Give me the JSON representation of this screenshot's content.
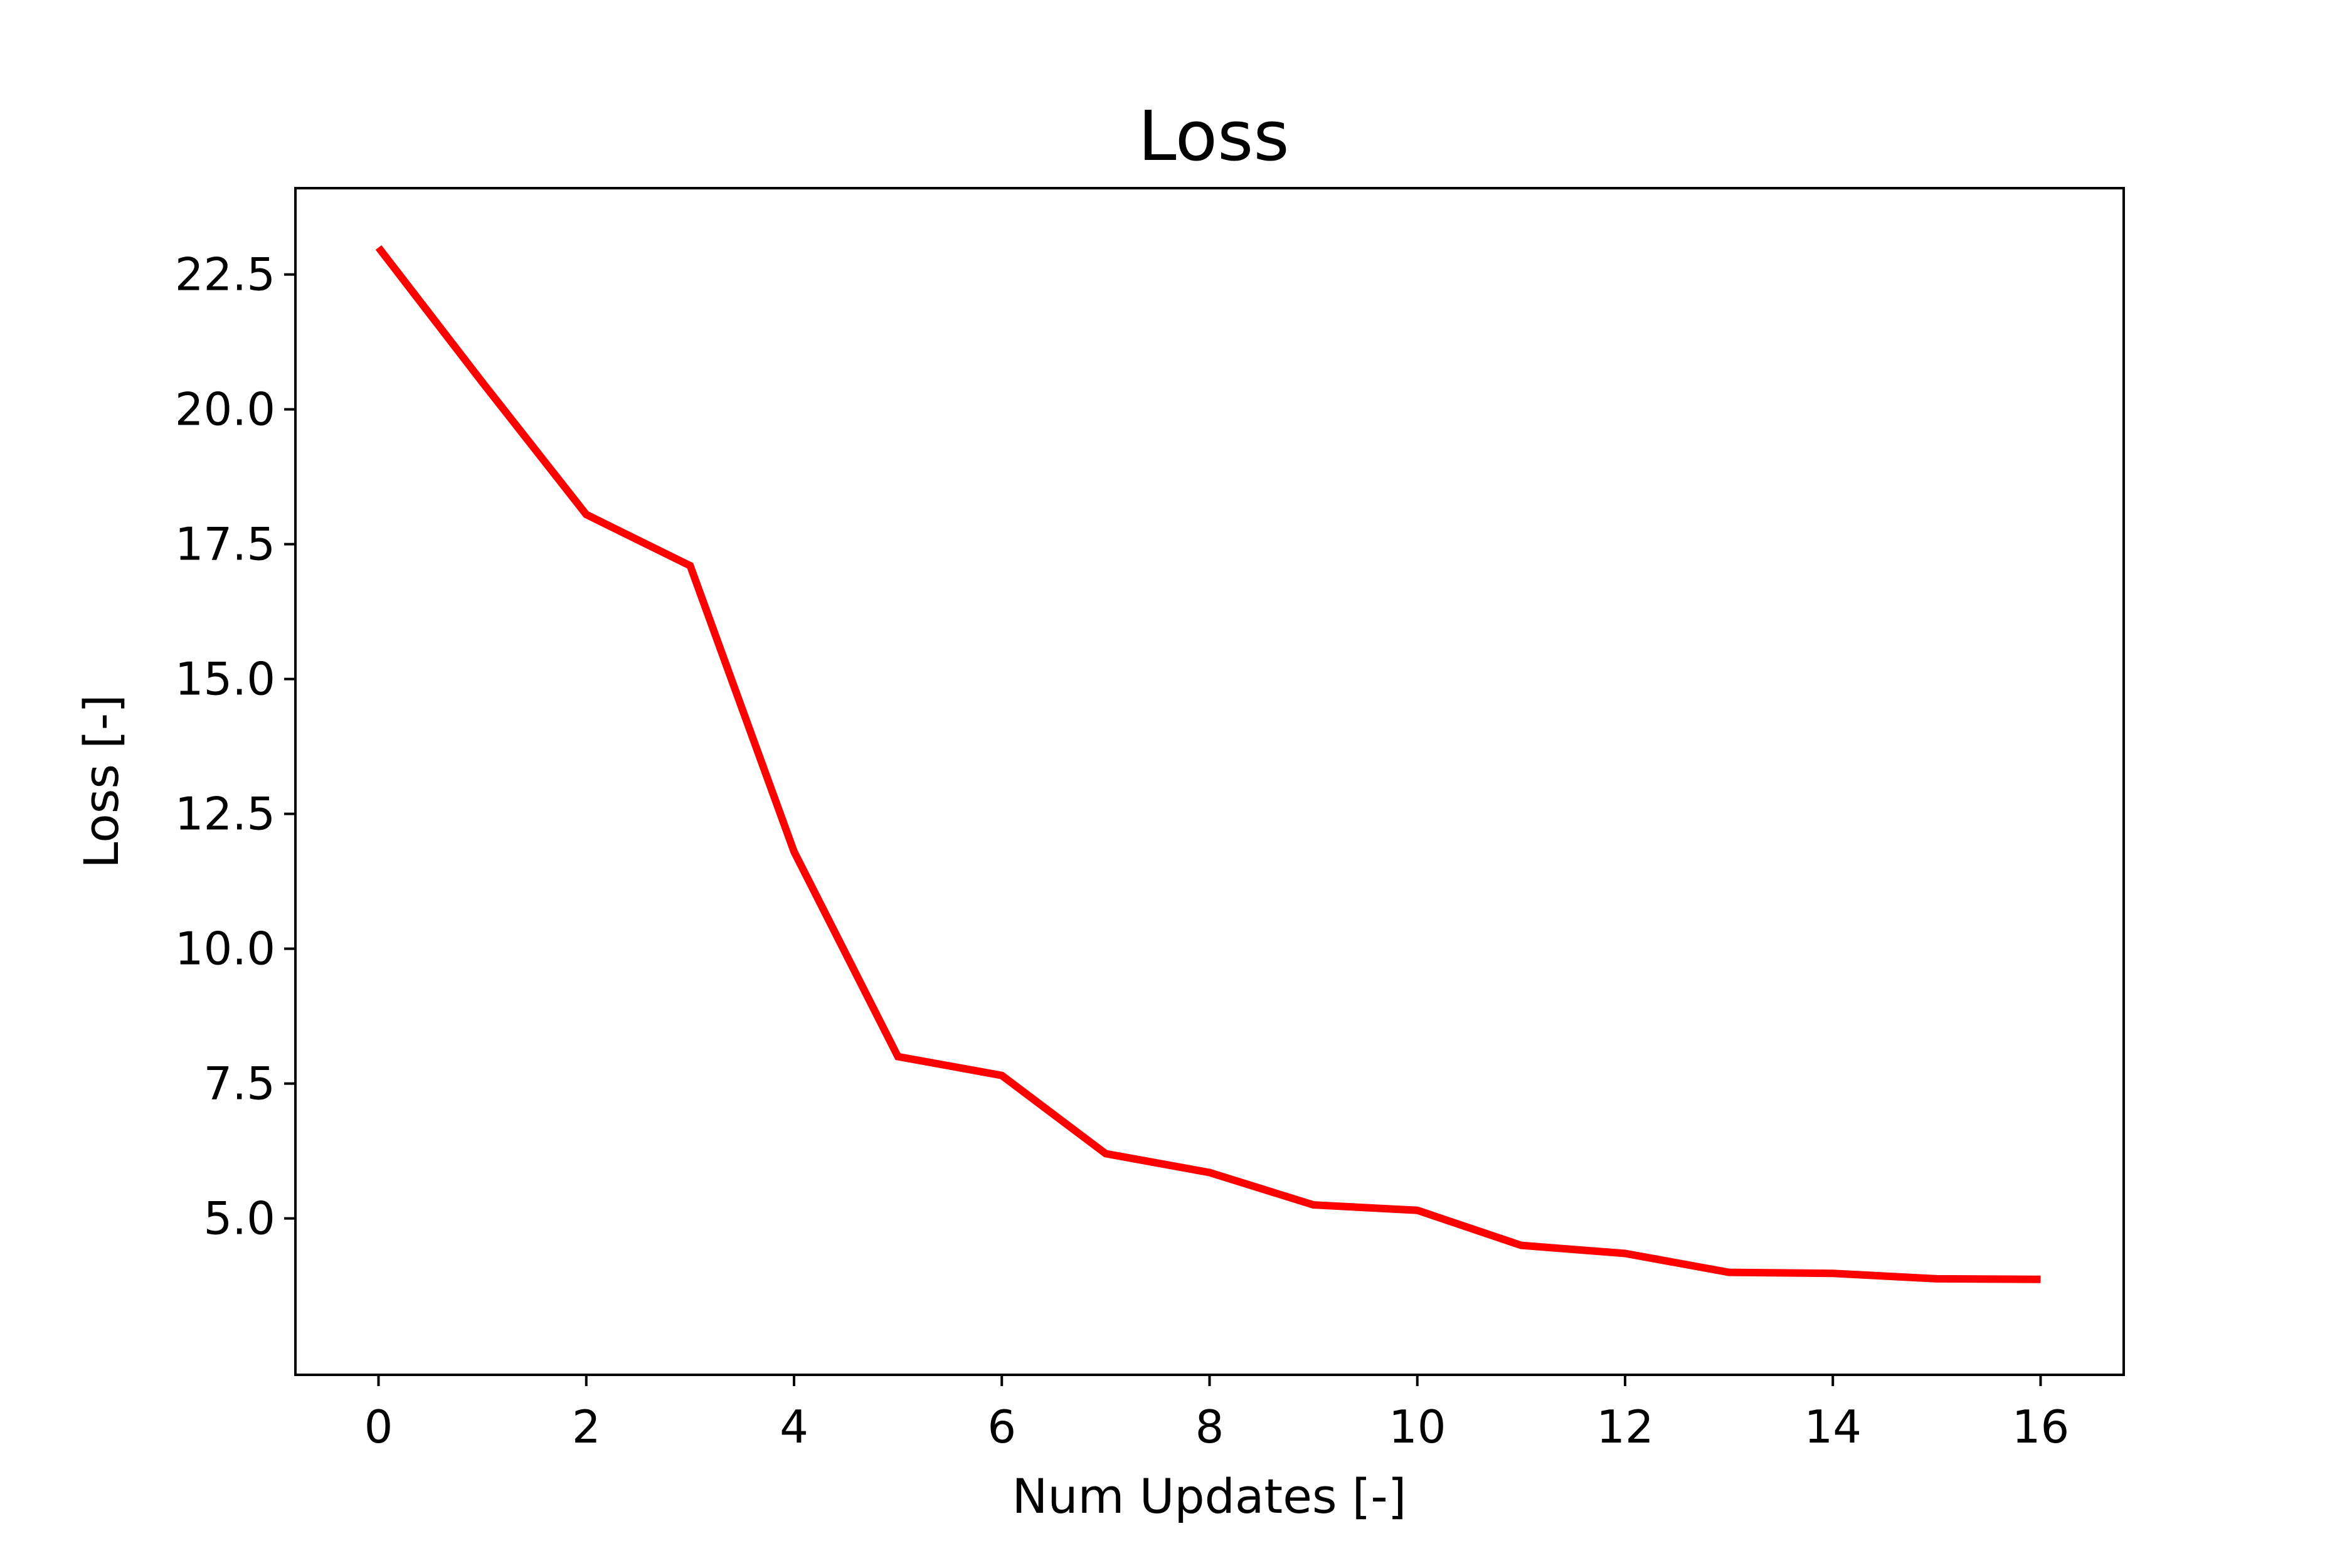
{
  "chart_data": {
    "type": "line",
    "title": "Loss",
    "xlabel": "Num Updates [-]",
    "ylabel": "Loss [-]",
    "xlim": [
      -0.8,
      16.8
    ],
    "ylim": [
      2.1,
      24.1
    ],
    "xticks": [
      0,
      2,
      4,
      6,
      8,
      10,
      12,
      14,
      16
    ],
    "xtick_labels": [
      "0",
      "2",
      "4",
      "6",
      "8",
      "10",
      "12",
      "14",
      "16"
    ],
    "yticks": [
      5.0,
      7.5,
      10.0,
      12.5,
      15.0,
      17.5,
      20.0,
      22.5
    ],
    "ytick_labels": [
      "5.0",
      "7.5",
      "10.0",
      "12.5",
      "15.0",
      "17.5",
      "20.0",
      "22.5"
    ],
    "grid": false,
    "series": [
      {
        "color": "#ff0000",
        "x": [
          0,
          1,
          2,
          3,
          4,
          5,
          6,
          7,
          8,
          9,
          10,
          11,
          12,
          13,
          14,
          15,
          16
        ],
        "y": [
          23.0,
          20.5,
          18.05,
          17.1,
          11.8,
          8.0,
          7.65,
          6.2,
          5.85,
          5.25,
          5.15,
          4.5,
          4.35,
          4.0,
          3.98,
          3.88,
          3.87
        ]
      }
    ]
  }
}
